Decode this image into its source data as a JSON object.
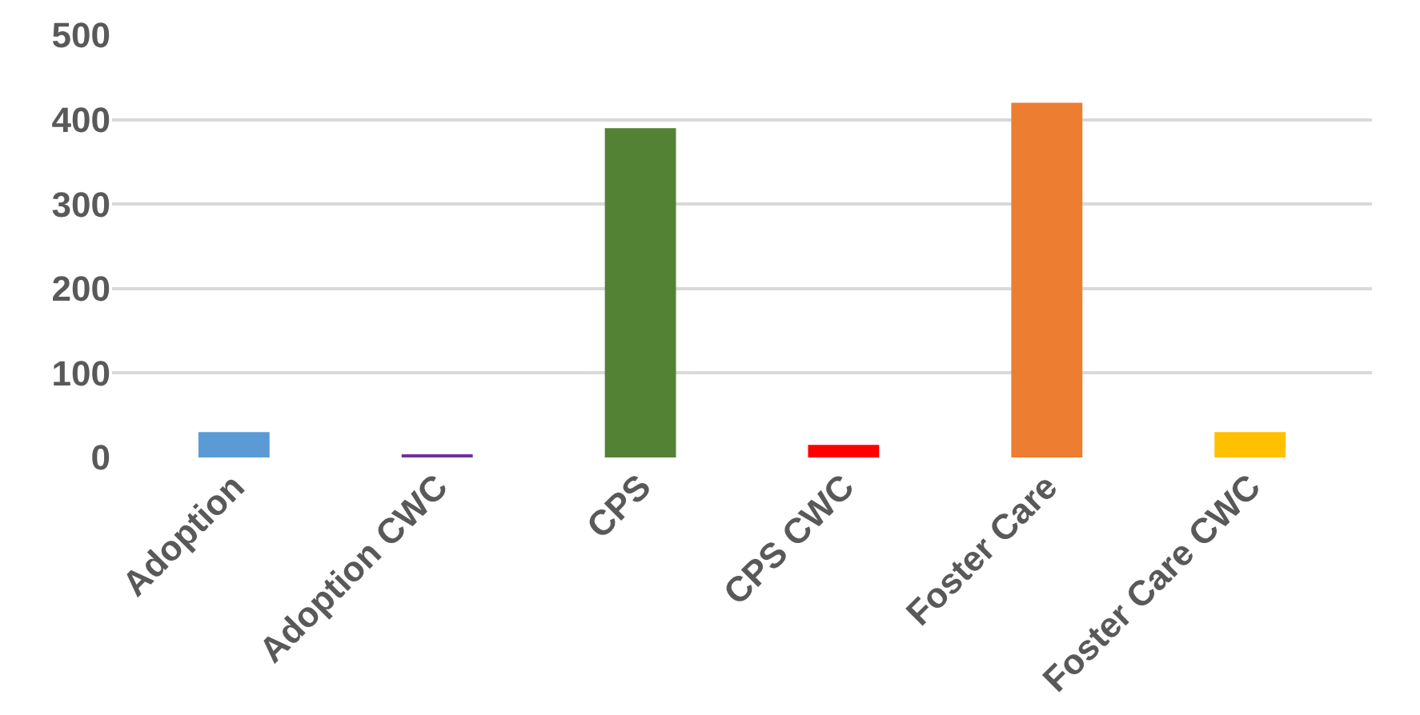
{
  "chart_data": {
    "type": "bar",
    "categories": [
      "Adoption",
      "Adoption CWC",
      "CPS",
      "CPS CWC",
      "Foster Care",
      "Foster Care CWC"
    ],
    "values": [
      30,
      3,
      390,
      15,
      420,
      30
    ],
    "colors": [
      "#5b9bd5",
      "#7030a0",
      "#548235",
      "#ff0000",
      "#ed7d31",
      "#ffc000"
    ],
    "ylim": [
      0,
      500
    ],
    "yticks": [
      0,
      100,
      200,
      300,
      400,
      500
    ],
    "grid": "y"
  }
}
